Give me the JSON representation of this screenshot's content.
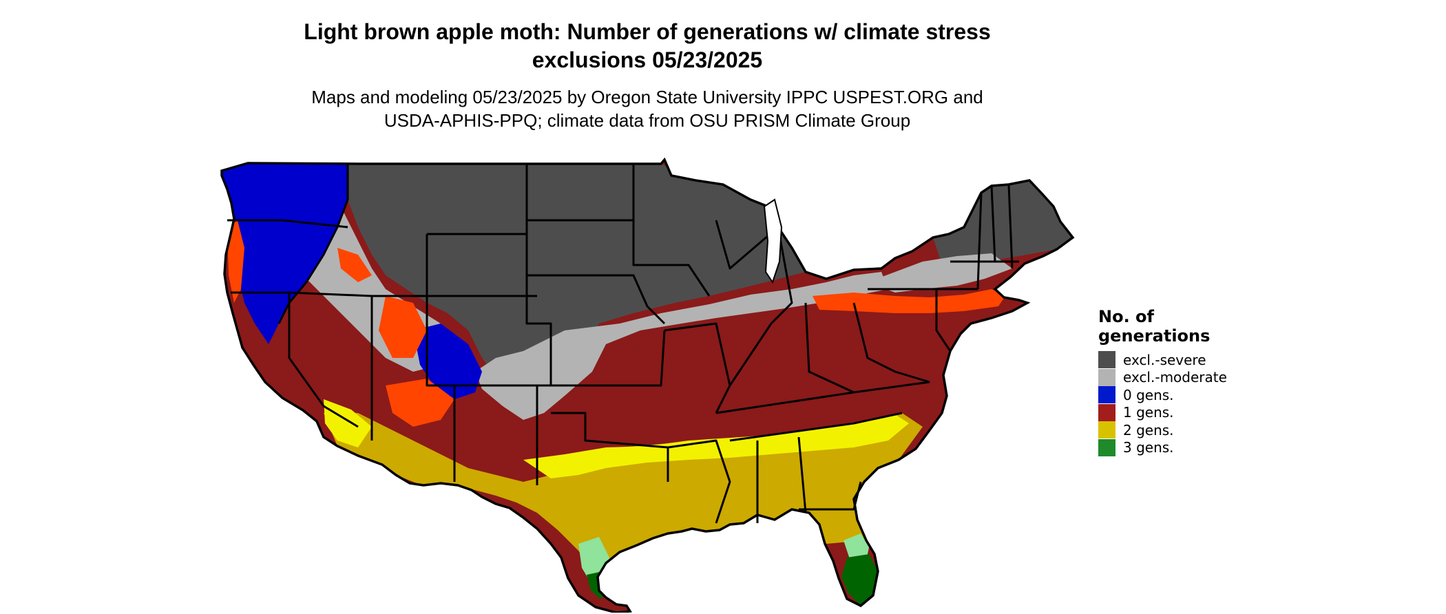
{
  "title_line1": "Light brown apple moth: Number of generations w/ climate stress",
  "title_line2": "exclusions 05/23/2025",
  "subtitle_line1": "Maps and modeling 05/23/2025 by Oregon State University IPPC USPEST.ORG and",
  "subtitle_line2": "USDA-APHIS-PPQ; climate data from OSU PRISM Climate Group",
  "legend": {
    "title_line1": "No. of",
    "title_line2": "generations",
    "items": [
      {
        "label": "excl.-severe",
        "color": "#4d4d4d"
      },
      {
        "label": "excl.-moderate",
        "color": "#b3b3b3"
      },
      {
        "label": "0 gens.",
        "color": "#0019cc"
      },
      {
        "label": "1 gens.",
        "color": "#a31d1d"
      },
      {
        "label": "2 gens.",
        "color": "#d8c200"
      },
      {
        "label": "3 gens.",
        "color": "#1f8a2a"
      }
    ]
  },
  "map_colors": {
    "severe": "#4d4d4d",
    "moderate": "#b3b3b3",
    "zero": "#0000cc",
    "one": "#8b1a1a",
    "one_orange": "#ff4500",
    "two_bright": "#f2f200",
    "two": "#ccaa00",
    "three_light": "#8fe39a",
    "three": "#006400",
    "border": "#000000"
  }
}
